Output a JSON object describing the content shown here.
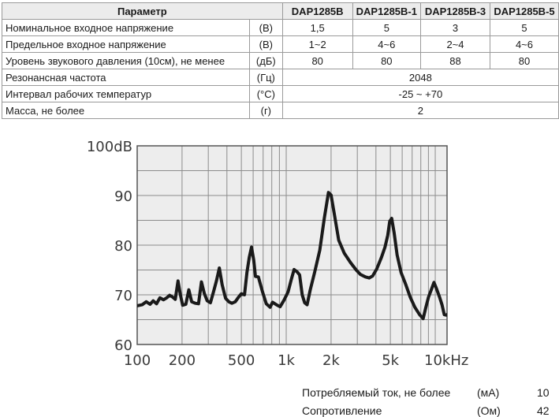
{
  "table": {
    "headers": [
      "Параметр",
      "DAP1285B",
      "DAP1285B-1",
      "DAP1285B-3",
      "DAP1285B-5"
    ],
    "rows": [
      {
        "name": "Номинальное входное напряжение",
        "unit": "(В)",
        "values": [
          "1,5",
          "5",
          "3",
          "5"
        ]
      },
      {
        "name": "Предельное входное напряжение",
        "unit": "(В)",
        "values": [
          "1~2",
          "4~6",
          "2~4",
          "4~6"
        ]
      },
      {
        "name": "Уровень звукового давления (10см), не менее",
        "unit": "(дБ)",
        "values": [
          "80",
          "80",
          "88",
          "80"
        ]
      },
      {
        "name": "Резонансная частота",
        "unit": "(Гц)",
        "value": "2048"
      },
      {
        "name": "Интервал рабочих температур",
        "unit": "(°С)",
        "value": "-25 ~ +70"
      },
      {
        "name": "Масса, не более",
        "unit": "(г)",
        "value": "2"
      }
    ]
  },
  "chart_data": {
    "type": "line",
    "x_scale": "log",
    "xlim": [
      100,
      12000
    ],
    "ylim": [
      60,
      100
    ],
    "grid": true,
    "x_ticks": [
      {
        "value": 100,
        "label": "100"
      },
      {
        "value": 200,
        "label": "200"
      },
      {
        "value": 500,
        "label": "500"
      },
      {
        "value": 1000,
        "label": "1k"
      },
      {
        "value": 2000,
        "label": "2k"
      },
      {
        "value": 5000,
        "label": "5k"
      },
      {
        "value": 10000,
        "label": "10kHz"
      }
    ],
    "y_ticks": [
      {
        "value": 100,
        "label": "100dB"
      },
      {
        "value": 90,
        "label": "90"
      },
      {
        "value": 80,
        "label": "80"
      },
      {
        "value": 70,
        "label": "70"
      },
      {
        "value": 60,
        "label": "60"
      }
    ],
    "series": [
      {
        "color": "#1a1a1a",
        "points": [
          [
            100,
            67.8
          ],
          [
            108,
            68.0
          ],
          [
            115,
            68.6
          ],
          [
            122,
            68.1
          ],
          [
            128,
            68.8
          ],
          [
            135,
            68.2
          ],
          [
            142,
            69.4
          ],
          [
            150,
            69.0
          ],
          [
            158,
            69.4
          ],
          [
            165,
            69.9
          ],
          [
            172,
            69.6
          ],
          [
            180,
            69.1
          ],
          [
            188,
            72.8
          ],
          [
            195,
            70.0
          ],
          [
            202,
            67.9
          ],
          [
            212,
            68.1
          ],
          [
            222,
            71.0
          ],
          [
            232,
            68.6
          ],
          [
            245,
            68.3
          ],
          [
            258,
            68.2
          ],
          [
            270,
            72.6
          ],
          [
            282,
            70.3
          ],
          [
            295,
            68.8
          ],
          [
            310,
            68.4
          ],
          [
            325,
            70.6
          ],
          [
            340,
            72.8
          ],
          [
            356,
            75.4
          ],
          [
            372,
            72.0
          ],
          [
            392,
            69.3
          ],
          [
            412,
            68.6
          ],
          [
            432,
            68.3
          ],
          [
            455,
            68.6
          ],
          [
            478,
            69.5
          ],
          [
            500,
            70.2
          ],
          [
            525,
            70.0
          ],
          [
            545,
            74.5
          ],
          [
            565,
            77.5
          ],
          [
            585,
            79.6
          ],
          [
            605,
            77.0
          ],
          [
            622,
            73.7
          ],
          [
            650,
            73.6
          ],
          [
            690,
            70.8
          ],
          [
            735,
            68.2
          ],
          [
            780,
            67.5
          ],
          [
            810,
            68.5
          ],
          [
            860,
            68.0
          ],
          [
            910,
            67.6
          ],
          [
            970,
            69.0
          ],
          [
            1030,
            70.6
          ],
          [
            1080,
            73.0
          ],
          [
            1130,
            75.1
          ],
          [
            1185,
            74.6
          ],
          [
            1230,
            74.0
          ],
          [
            1280,
            70.0
          ],
          [
            1330,
            68.4
          ],
          [
            1380,
            68.0
          ],
          [
            1450,
            71.0
          ],
          [
            1550,
            74.5
          ],
          [
            1680,
            79.0
          ],
          [
            1800,
            85.4
          ],
          [
            1920,
            90.6
          ],
          [
            2000,
            90.1
          ],
          [
            2100,
            86.4
          ],
          [
            2250,
            81.0
          ],
          [
            2450,
            78.4
          ],
          [
            2700,
            76.5
          ],
          [
            2950,
            75.0
          ],
          [
            3150,
            74.1
          ],
          [
            3400,
            73.6
          ],
          [
            3600,
            73.4
          ],
          [
            3800,
            73.8
          ],
          [
            4050,
            75.2
          ],
          [
            4350,
            77.5
          ],
          [
            4600,
            79.6
          ],
          [
            4800,
            82.0
          ],
          [
            4950,
            84.8
          ],
          [
            5100,
            85.4
          ],
          [
            5300,
            82.5
          ],
          [
            5550,
            78.0
          ],
          [
            5900,
            74.5
          ],
          [
            6350,
            72.0
          ],
          [
            6800,
            69.5
          ],
          [
            7300,
            67.5
          ],
          [
            7850,
            66.0
          ],
          [
            8300,
            65.2
          ],
          [
            8600,
            67.2
          ],
          [
            9000,
            69.5
          ],
          [
            9400,
            71.0
          ],
          [
            9800,
            72.5
          ],
          [
            10200,
            71.2
          ],
          [
            10700,
            69.5
          ],
          [
            11100,
            68.0
          ],
          [
            11500,
            66.0
          ],
          [
            11900,
            65.9
          ],
          [
            12400,
            66.4
          ],
          [
            12900,
            67.3
          ]
        ]
      }
    ]
  },
  "footer": {
    "current": {
      "label": "Потребляемый ток, не более",
      "unit": "(мА)",
      "value": "10"
    },
    "resistance": {
      "label": "Сопротивление",
      "unit": "(Ом)",
      "value": "42"
    }
  }
}
